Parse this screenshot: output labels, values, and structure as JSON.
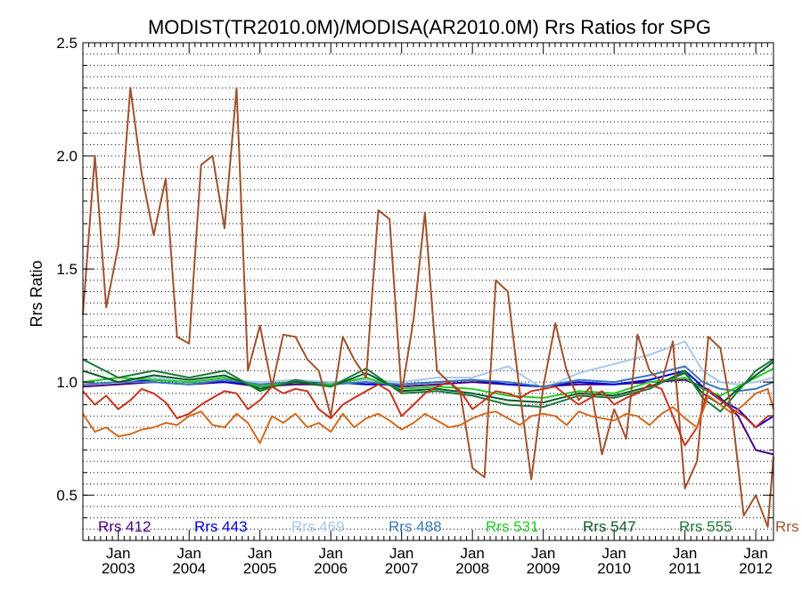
{
  "chart_data": {
    "type": "line",
    "title": "MODIST(TR2010.0M)/MODISA(AR2010.0M)  Rrs Ratios for SPG",
    "ylabel": "Rrs Ratio",
    "xlabel": "",
    "ylim": [
      0.3,
      2.5
    ],
    "xlim": [
      2002.5,
      2012.25
    ],
    "yticks": [
      0.5,
      1.0,
      1.5,
      2.0,
      2.5
    ],
    "ytick_labels": [
      "0.5",
      "1.0",
      "1.5",
      "2.0",
      "2.5"
    ],
    "xticks": [
      2003.0,
      2004.0,
      2005.0,
      2006.0,
      2007.0,
      2008.0,
      2009.0,
      2010.0,
      2011.0,
      2012.0
    ],
    "xtick_month_labels": [
      "Jan",
      "Jan",
      "Jan",
      "Jan",
      "Jan",
      "Jan",
      "Jan",
      "Jan",
      "Jan",
      "Jan"
    ],
    "xtick_year_labels": [
      "2003",
      "2004",
      "2005",
      "2006",
      "2007",
      "2008",
      "2009",
      "2010",
      "2011",
      "2012"
    ],
    "grid": true,
    "legend_position": "bottom",
    "series": [
      {
        "name": "Rrs  412",
        "color": "#4b0082",
        "x": [
          2002.5,
          2003.0,
          2003.5,
          2004.0,
          2004.5,
          2005.0,
          2005.5,
          2006.0,
          2006.5,
          2007.0,
          2007.5,
          2008.0,
          2008.5,
          2009.0,
          2009.5,
          2010.0,
          2010.5,
          2011.0,
          2011.25,
          2011.5,
          2011.75,
          2012.0,
          2012.25
        ],
        "y": [
          0.98,
          0.99,
          1.0,
          0.99,
          1.0,
          0.98,
          0.99,
          0.99,
          1.0,
          0.98,
          0.99,
          1.0,
          0.99,
          0.98,
          0.99,
          0.99,
          1.0,
          1.01,
          0.98,
          0.93,
          0.85,
          0.7,
          0.68
        ]
      },
      {
        "name": "Rrs  443",
        "color": "#0000e0",
        "x": [
          2002.5,
          2003.0,
          2003.5,
          2004.0,
          2004.5,
          2005.0,
          2005.5,
          2006.0,
          2006.5,
          2007.0,
          2007.5,
          2008.0,
          2008.5,
          2009.0,
          2009.5,
          2010.0,
          2010.5,
          2011.0,
          2011.25,
          2011.5,
          2011.75,
          2012.0,
          2012.25
        ],
        "y": [
          0.99,
          1.0,
          1.01,
          1.0,
          1.0,
          0.99,
          1.0,
          1.0,
          0.99,
          0.99,
          1.0,
          1.01,
          0.99,
          0.98,
          1.0,
          0.99,
          1.01,
          1.05,
          0.98,
          0.92,
          0.88,
          0.8,
          0.85
        ]
      },
      {
        "name": "Rrs  469",
        "color": "#a8c8e8",
        "x": [
          2002.5,
          2003.0,
          2003.5,
          2004.0,
          2004.5,
          2005.0,
          2005.5,
          2006.0,
          2006.5,
          2007.0,
          2007.5,
          2008.0,
          2008.5,
          2009.0,
          2009.5,
          2010.0,
          2010.5,
          2011.0,
          2011.25,
          2011.5,
          2011.75,
          2012.0,
          2012.25
        ],
        "y": [
          0.99,
          1.0,
          1.02,
          1.0,
          1.01,
          1.0,
          1.01,
          1.0,
          1.01,
          1.0,
          1.02,
          1.02,
          1.07,
          0.97,
          1.04,
          1.08,
          1.12,
          1.18,
          1.05,
          1.0,
          0.99,
          1.0,
          1.02
        ]
      },
      {
        "name": "Rrs  488",
        "color": "#3a7ab8",
        "x": [
          2002.5,
          2003.0,
          2003.5,
          2004.0,
          2004.5,
          2005.0,
          2005.5,
          2006.0,
          2006.5,
          2007.0,
          2007.5,
          2008.0,
          2008.5,
          2009.0,
          2009.5,
          2010.0,
          2010.5,
          2011.0,
          2011.25,
          2011.5,
          2011.75,
          2012.0,
          2012.25
        ],
        "y": [
          0.99,
          1.0,
          1.0,
          0.99,
          1.01,
          0.99,
          1.0,
          0.99,
          1.0,
          0.99,
          1.0,
          1.01,
          1.0,
          0.98,
          1.01,
          1.0,
          1.03,
          1.07,
          1.0,
          0.97,
          0.96,
          0.97,
          1.0
        ]
      },
      {
        "name": "Rrs  531",
        "color": "#22cc22",
        "x": [
          2002.5,
          2003.0,
          2003.5,
          2004.0,
          2004.5,
          2005.0,
          2005.5,
          2006.0,
          2006.5,
          2007.0,
          2007.5,
          2008.0,
          2008.5,
          2009.0,
          2009.5,
          2010.0,
          2010.5,
          2011.0,
          2011.25,
          2011.5,
          2011.75,
          2012.0,
          2012.25
        ],
        "y": [
          1.0,
          1.02,
          1.01,
          1.0,
          1.02,
          0.98,
          1.0,
          0.99,
          1.02,
          0.97,
          0.98,
          0.97,
          0.94,
          0.93,
          0.96,
          0.95,
          1.0,
          1.02,
          0.97,
          0.94,
          0.98,
          1.02,
          1.06
        ]
      },
      {
        "name": "Rrs  547",
        "color": "#0a5a2a",
        "x": [
          2002.5,
          2003.0,
          2003.5,
          2004.0,
          2004.5,
          2005.0,
          2005.5,
          2006.0,
          2006.5,
          2007.0,
          2007.5,
          2008.0,
          2008.5,
          2009.0,
          2009.5,
          2010.0,
          2010.5,
          2011.0,
          2011.25,
          2011.5,
          2011.75,
          2012.0,
          2012.25
        ],
        "y": [
          1.05,
          1.0,
          1.03,
          1.01,
          1.03,
          0.97,
          1.0,
          0.98,
          1.04,
          0.96,
          0.97,
          0.95,
          0.92,
          0.91,
          0.95,
          0.94,
          0.98,
          1.04,
          0.95,
          0.9,
          0.97,
          1.03,
          1.09
        ]
      },
      {
        "name": "Rrs  555",
        "color": "#1f7a3a",
        "x": [
          2002.5,
          2003.0,
          2003.5,
          2004.0,
          2004.5,
          2005.0,
          2005.5,
          2006.0,
          2006.5,
          2007.0,
          2007.5,
          2008.0,
          2008.5,
          2009.0,
          2009.5,
          2010.0,
          2010.5,
          2011.0,
          2011.25,
          2011.5,
          2011.75,
          2012.0,
          2012.25
        ],
        "y": [
          1.1,
          1.02,
          1.05,
          1.02,
          1.05,
          0.96,
          1.01,
          0.98,
          1.06,
          0.95,
          0.96,
          0.94,
          0.9,
          0.89,
          0.94,
          0.93,
          0.97,
          1.05,
          0.93,
          0.87,
          0.96,
          1.05,
          1.1
        ]
      },
      {
        "name": "Rrs",
        "color": "#a0522d",
        "x": [
          2002.5,
          2002.67,
          2002.83,
          2003.0,
          2003.17,
          2003.33,
          2003.5,
          2003.67,
          2003.83,
          2004.0,
          2004.17,
          2004.33,
          2004.5,
          2004.67,
          2004.83,
          2005.0,
          2005.17,
          2005.33,
          2005.5,
          2005.67,
          2005.83,
          2006.0,
          2006.17,
          2006.33,
          2006.5,
          2006.67,
          2006.83,
          2007.0,
          2007.17,
          2007.33,
          2007.5,
          2007.67,
          2007.83,
          2008.0,
          2008.17,
          2008.33,
          2008.5,
          2008.67,
          2008.83,
          2009.0,
          2009.17,
          2009.33,
          2009.5,
          2009.67,
          2009.83,
          2010.0,
          2010.17,
          2010.33,
          2010.5,
          2010.67,
          2010.83,
          2011.0,
          2011.17,
          2011.33,
          2011.5,
          2011.67,
          2011.83,
          2012.0,
          2012.17,
          2012.25
        ],
        "y": [
          1.3,
          2.0,
          1.33,
          1.6,
          2.3,
          1.92,
          1.65,
          1.9,
          1.2,
          1.17,
          1.96,
          2.0,
          1.68,
          2.3,
          1.05,
          1.25,
          0.98,
          1.21,
          1.2,
          1.1,
          1.05,
          0.85,
          1.2,
          1.1,
          1.02,
          1.76,
          1.72,
          0.95,
          1.28,
          1.75,
          1.05,
          1.0,
          0.95,
          0.62,
          0.58,
          1.45,
          1.4,
          0.95,
          0.57,
          0.98,
          1.26,
          1.05,
          0.92,
          0.98,
          0.68,
          0.88,
          0.75,
          1.21,
          1.05,
          1.0,
          1.18,
          0.53,
          0.65,
          1.2,
          1.15,
          0.85,
          0.41,
          0.5,
          0.36,
          0.67
        ]
      },
      {
        "name": "",
        "color": "#c8321e",
        "x": [
          2002.5,
          2002.67,
          2002.83,
          2003.0,
          2003.17,
          2003.33,
          2003.5,
          2003.67,
          2003.83,
          2004.0,
          2004.17,
          2004.33,
          2004.5,
          2004.67,
          2004.83,
          2005.0,
          2005.17,
          2005.33,
          2005.5,
          2005.67,
          2005.83,
          2006.0,
          2006.17,
          2006.33,
          2006.5,
          2006.67,
          2006.83,
          2007.0,
          2007.17,
          2007.33,
          2007.5,
          2007.67,
          2007.83,
          2008.0,
          2008.17,
          2008.33,
          2008.5,
          2008.67,
          2008.83,
          2009.0,
          2009.17,
          2009.33,
          2009.5,
          2009.67,
          2009.83,
          2010.0,
          2010.17,
          2010.33,
          2010.5,
          2010.67,
          2010.83,
          2011.0,
          2011.17,
          2011.33,
          2011.5,
          2011.67,
          2011.83,
          2012.0,
          2012.17,
          2012.25
        ],
        "y": [
          0.96,
          0.9,
          0.94,
          0.88,
          0.92,
          0.97,
          0.95,
          0.91,
          0.84,
          0.86,
          0.9,
          0.93,
          0.96,
          0.95,
          0.88,
          0.92,
          0.98,
          0.95,
          0.97,
          0.96,
          0.88,
          0.84,
          0.9,
          0.93,
          0.96,
          0.99,
          0.96,
          0.85,
          0.9,
          0.95,
          0.98,
          1.0,
          0.96,
          0.88,
          0.92,
          0.96,
          0.95,
          0.93,
          0.96,
          0.97,
          0.98,
          0.94,
          0.9,
          0.93,
          0.96,
          0.9,
          0.93,
          0.95,
          0.99,
          0.97,
          0.85,
          0.72,
          0.8,
          0.97,
          0.92,
          0.88,
          0.85,
          0.8,
          0.85,
          0.85
        ]
      },
      {
        "name": "",
        "color": "#d2691e",
        "x": [
          2002.5,
          2002.67,
          2002.83,
          2003.0,
          2003.17,
          2003.33,
          2003.5,
          2003.67,
          2003.83,
          2004.0,
          2004.17,
          2004.33,
          2004.5,
          2004.67,
          2004.83,
          2005.0,
          2005.17,
          2005.33,
          2005.5,
          2005.67,
          2005.83,
          2006.0,
          2006.17,
          2006.33,
          2006.5,
          2006.67,
          2006.83,
          2007.0,
          2007.17,
          2007.33,
          2007.5,
          2007.67,
          2007.83,
          2008.0,
          2008.17,
          2008.33,
          2008.5,
          2008.67,
          2008.83,
          2009.0,
          2009.17,
          2009.33,
          2009.5,
          2009.67,
          2009.83,
          2010.0,
          2010.17,
          2010.33,
          2010.5,
          2010.67,
          2010.83,
          2011.0,
          2011.17,
          2011.33,
          2011.5,
          2011.67,
          2011.83,
          2012.0,
          2012.17,
          2012.25
        ],
        "y": [
          0.86,
          0.78,
          0.8,
          0.76,
          0.77,
          0.79,
          0.8,
          0.82,
          0.81,
          0.85,
          0.87,
          0.81,
          0.8,
          0.86,
          0.82,
          0.73,
          0.85,
          0.82,
          0.86,
          0.8,
          0.82,
          0.78,
          0.86,
          0.8,
          0.84,
          0.86,
          0.83,
          0.79,
          0.82,
          0.86,
          0.83,
          0.8,
          0.81,
          0.84,
          0.86,
          0.87,
          0.84,
          0.81,
          0.85,
          0.86,
          0.85,
          0.81,
          0.87,
          0.85,
          0.84,
          0.83,
          0.86,
          0.85,
          0.81,
          0.86,
          0.89,
          0.84,
          0.8,
          0.94,
          0.9,
          0.86,
          0.9,
          0.95,
          0.97,
          0.88
        ]
      }
    ]
  }
}
